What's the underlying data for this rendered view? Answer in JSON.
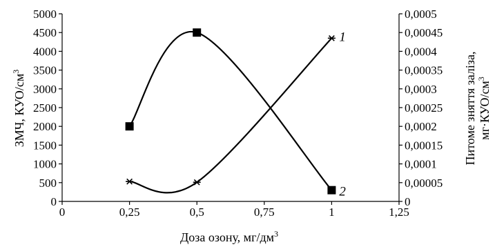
{
  "chart_data": {
    "type": "line",
    "xlabel": "Доза озону, мг/дм",
    "xlabel_sup": "3",
    "ylabel_left": "ЗМЧ, КУО/см",
    "ylabel_left_sup": "3",
    "ylabel_right_line1": "Питоме зняття заліза,",
    "ylabel_right_line2": "мг·КУО/см",
    "ylabel_right_sup": "3",
    "xlim": [
      0,
      1.25
    ],
    "ylim_left": [
      0,
      5000
    ],
    "ylim_right": [
      0,
      0.0005
    ],
    "x_ticks": [
      {
        "value": 0,
        "label": "0"
      },
      {
        "value": 0.25,
        "label": "0,25"
      },
      {
        "value": 0.5,
        "label": "0,5"
      },
      {
        "value": 0.75,
        "label": "0,75"
      },
      {
        "value": 1,
        "label": "1"
      },
      {
        "value": 1.25,
        "label": "1,25"
      }
    ],
    "y_left_ticks": [
      {
        "value": 0,
        "label": "0"
      },
      {
        "value": 500,
        "label": "500"
      },
      {
        "value": 1000,
        "label": "1000"
      },
      {
        "value": 1500,
        "label": "1500"
      },
      {
        "value": 2000,
        "label": "2000"
      },
      {
        "value": 2500,
        "label": "2500"
      },
      {
        "value": 3000,
        "label": "3000"
      },
      {
        "value": 3500,
        "label": "3500"
      },
      {
        "value": 4000,
        "label": "4000"
      },
      {
        "value": 4500,
        "label": "4500"
      },
      {
        "value": 5000,
        "label": "5000"
      }
    ],
    "y_right_ticks": [
      {
        "value": 0,
        "label": "0"
      },
      {
        "value": 5e-05,
        "label": "0,00005"
      },
      {
        "value": 0.0001,
        "label": "0,0001"
      },
      {
        "value": 0.00015,
        "label": "0,00015"
      },
      {
        "value": 0.0002,
        "label": "0,0002"
      },
      {
        "value": 0.00025,
        "label": "0,00025"
      },
      {
        "value": 0.0003,
        "label": "0,0003"
      },
      {
        "value": 0.00035,
        "label": "0,00035"
      },
      {
        "value": 0.0004,
        "label": "0,0004"
      },
      {
        "value": 0.00045,
        "label": "0,00045"
      },
      {
        "value": 0.0005,
        "label": "0,0005"
      }
    ],
    "grid": false,
    "series": [
      {
        "name": "1",
        "axis": "left",
        "marker": "star",
        "x": [
          0.25,
          0.5,
          1
        ],
        "values": [
          530,
          510,
          4350
        ]
      },
      {
        "name": "2",
        "axis": "right",
        "marker": "square",
        "x": [
          0.25,
          0.5,
          1
        ],
        "values": [
          0.0002,
          0.00045,
          3e-05
        ]
      }
    ]
  }
}
